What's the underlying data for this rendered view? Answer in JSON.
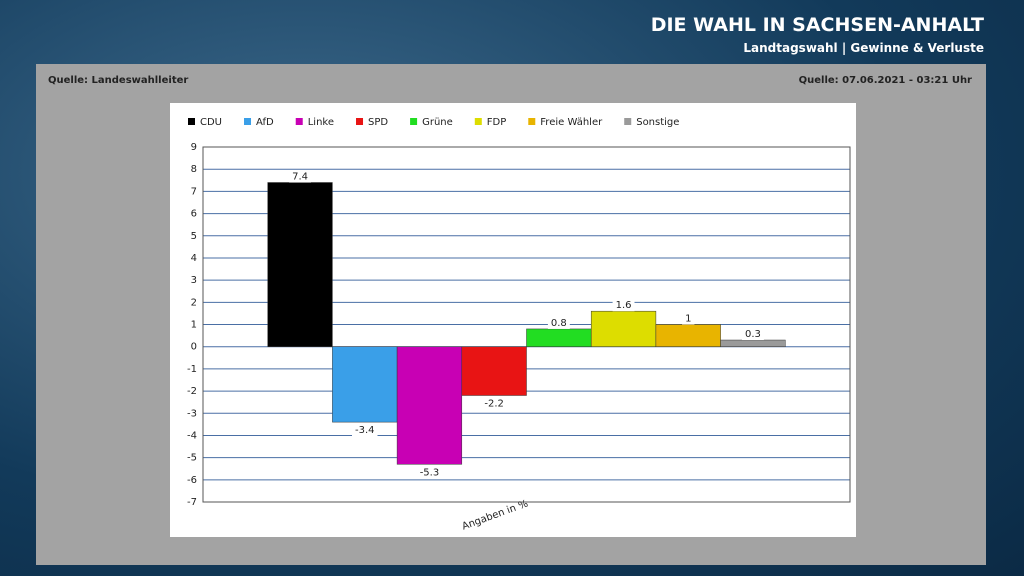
{
  "header": {
    "title": "DIE WAHL IN SACHSEN-ANHALT",
    "subtitle": "Landtagswahl | Gewinne & Verluste",
    "source_left": "Quelle: Landeswahlleiter",
    "source_right": "Quelle: 07.06.2021 - 03:21 Uhr"
  },
  "chart_data": {
    "type": "bar",
    "xlabel": "Angaben in %",
    "categories": [
      "CDU",
      "AfD",
      "Linke",
      "SPD",
      "Grüne",
      "FDP",
      "Freie Wähler",
      "Sonstige"
    ],
    "values": [
      7.4,
      -3.4,
      -5.3,
      -2.2,
      0.8,
      1.6,
      1,
      0.3
    ],
    "colors": [
      "#000000",
      "#3a9fe8",
      "#c800b4",
      "#e81414",
      "#22dd22",
      "#dddd00",
      "#e8b400",
      "#9a9a9a"
    ],
    "ylim": [
      -7,
      9
    ],
    "yticks": [
      -7,
      -6,
      -5,
      -4,
      -3,
      -2,
      -1,
      0,
      1,
      2,
      3,
      4,
      5,
      6,
      7,
      8,
      9
    ],
    "grid": true
  }
}
